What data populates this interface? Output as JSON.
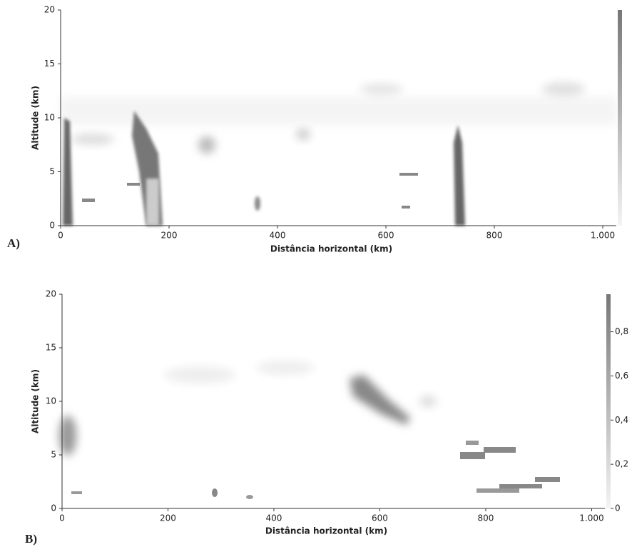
{
  "chart_data": [
    {
      "type": "heatmap",
      "panel_label": "A)",
      "x_label": "Distância horizontal (km)",
      "y_label": "Altitude (km)",
      "xlim": [
        0,
        1025
      ],
      "xticks": [
        0,
        200,
        400,
        600,
        800,
        {
          "value": 1000,
          "label": "1.000"
        }
      ],
      "ylim": [
        0,
        20
      ],
      "yticks": [
        0,
        5,
        10,
        15,
        20
      ],
      "colorbar": true
    },
    {
      "type": "heatmap",
      "panel_label": "B)",
      "x_label": "Distância horizontal (km)",
      "y_label": "Altitude (km)",
      "xlim": [
        0,
        1025
      ],
      "xticks": [
        0,
        200,
        400,
        600,
        800,
        {
          "value": 1000,
          "label": "1.000"
        }
      ],
      "ylim": [
        0,
        20
      ],
      "yticks": [
        0,
        5,
        10,
        15,
        20
      ],
      "colorbar": true,
      "clim": [
        0,
        0.97
      ],
      "cticks": [
        0,
        {
          "value": 0.2,
          "label": "0,2"
        },
        {
          "value": 0.4,
          "label": "0,4"
        },
        {
          "value": 0.6,
          "label": "0,6"
        },
        {
          "value": 0.8,
          "label": "0,8"
        }
      ]
    }
  ]
}
